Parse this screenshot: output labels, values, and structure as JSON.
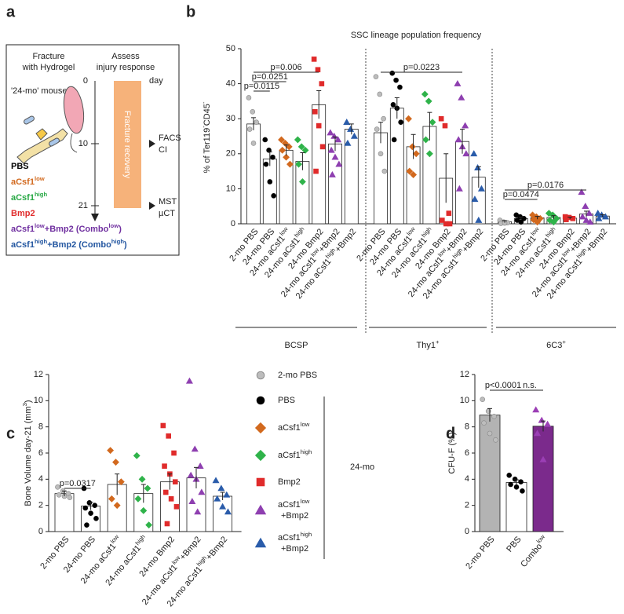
{
  "panel_a": {
    "letter": "a",
    "left_heading": [
      "Fracture",
      "with Hydrogel"
    ],
    "right_heading": [
      "Assess",
      "injury response"
    ],
    "mouse_label": "'24-mo' mouse",
    "day_label": "day",
    "days": [
      "0",
      "10",
      "21"
    ],
    "bar_label": "Fracture recovery",
    "assessments": [
      [
        "FACS",
        "CI"
      ],
      [
        "MST",
        "µCT"
      ]
    ],
    "treatments": [
      [
        "PBS"
      ],
      [
        "aCsf1",
        "low"
      ],
      [
        "aCsf1",
        "high"
      ],
      [
        "Bmp2"
      ],
      [
        "aCsf1",
        "low",
        "+Bmp2 (Combo",
        "low",
        ")"
      ],
      [
        "aCsf1",
        "high",
        "+Bmp2 (Combo",
        "high",
        ")"
      ]
    ],
    "treatment_colors": [
      "#000000",
      "#d2691e",
      "#27a844",
      "#e02b2b",
      "#7030a0",
      "#2356a0"
    ]
  },
  "chart_data": [
    {
      "type": "bar",
      "letter": "b",
      "title": "SSC lineage population frequency",
      "ylabel": [
        "% of Ter119",
        "-",
        "CD45",
        "-"
      ],
      "ylim": [
        0,
        50
      ],
      "yticks": [
        0,
        10,
        20,
        30,
        40,
        50
      ],
      "categories": [
        [
          "2-mo PBS"
        ],
        [
          "24-mo PBS"
        ],
        [
          "24-mo  aCsf1",
          "low"
        ],
        [
          "24-mo aCsf1",
          "high"
        ],
        [
          "24-mo Bmp2"
        ],
        [
          "24-mo aCsf1",
          "low",
          "+Bmp2"
        ],
        [
          "24-mo aCsf1",
          "high",
          "+Bmp2"
        ]
      ],
      "markers": [
        {
          "shape": "circle",
          "color": "#bdbdbd"
        },
        {
          "shape": "circle",
          "color": "#000000"
        },
        {
          "shape": "diamond",
          "color": "#d2691e"
        },
        {
          "shape": "diamond",
          "color": "#2fb34a"
        },
        {
          "shape": "square",
          "color": "#e02b2b"
        },
        {
          "shape": "triangle",
          "color": "#8e3fb0"
        },
        {
          "shape": "triangle",
          "color": "#2a5caa"
        }
      ],
      "bar_color": "#ffffff",
      "groups": [
        {
          "name": [
            "BCSP"
          ],
          "values": [
            28.5,
            18.5,
            21,
            17.8,
            34,
            22.8,
            27
          ],
          "errors": [
            1.8,
            2,
            1.5,
            2.5,
            4,
            2,
            1.5
          ],
          "points": [
            [
              36,
              32,
              29,
              27,
              23
            ],
            [
              24,
              21,
              19,
              17,
              12,
              8
            ],
            [
              24,
              23,
              22,
              21,
              19,
              17
            ],
            [
              24,
              22,
              21,
              17,
              12
            ],
            [
              47,
              44,
              40,
              32,
              28,
              22,
              15
            ],
            [
              26,
              25,
              24,
              21,
              19,
              17,
              14
            ],
            [
              29,
              27,
              25,
              23
            ]
          ]
        },
        {
          "name": [
            "Thy1",
            "+"
          ],
          "values": [
            26,
            33,
            22,
            27.8,
            13,
            23.5,
            13.3
          ],
          "errors": [
            3,
            3,
            3.5,
            4,
            7,
            3.5,
            3
          ],
          "points": [
            [
              42,
              37,
              30,
              27,
              20,
              15
            ],
            [
              43,
              41,
              39,
              34,
              33,
              29,
              24
            ],
            [
              30,
              22,
              20,
              15,
              14
            ],
            [
              37,
              35,
              29,
              24,
              20
            ],
            [
              30,
              28,
              3,
              1,
              0,
              0
            ],
            [
              40,
              36,
              28,
              24,
              22,
              20,
              10
            ],
            [
              20,
              16,
              10,
              7,
              1
            ]
          ]
        },
        {
          "name": [
            "6C3",
            "+"
          ],
          "values": [
            0.6,
            1.5,
            1.7,
            1.8,
            1.6,
            2.8,
            2.2
          ],
          "errors": [
            0.3,
            0.4,
            0.4,
            0.5,
            0.3,
            0.8,
            0.4
          ],
          "points": [
            [
              1,
              0.5,
              0.3,
              0.1,
              0.2
            ],
            [
              2.5,
              2,
              1.5,
              1,
              0.5
            ],
            [
              2.5,
              2,
              1.5,
              1.2,
              0.5
            ],
            [
              3,
              2.5,
              1.5,
              1,
              0.5
            ],
            [
              2,
              1.8,
              1.5,
              1.2
            ],
            [
              9,
              5,
              3,
              2,
              1,
              0.5
            ],
            [
              3,
              2.5,
              2,
              1.5
            ]
          ]
        }
      ],
      "annotations": [
        {
          "group": 0,
          "from": 0,
          "to": 4,
          "label": "p=0.006"
        },
        {
          "group": 0,
          "from": 0,
          "to": 2,
          "label": "p=0.0251"
        },
        {
          "group": 0,
          "from": 0,
          "to": 1,
          "label": "p=0.0115"
        },
        {
          "group": 1,
          "from": 0,
          "to": 5,
          "label": "p=0.0223"
        },
        {
          "group": 2,
          "from": 0,
          "to": 5,
          "label": "p=0.0176"
        },
        {
          "group": 2,
          "from": 0,
          "to": 2,
          "label": "p=0.0474"
        }
      ]
    },
    {
      "type": "bar",
      "letter": "c",
      "ylabel": [
        "Bone Volume day-21 (mm",
        "3",
        ")"
      ],
      "ylim": [
        0,
        12
      ],
      "yticks": [
        0,
        2,
        4,
        6,
        8,
        10,
        12
      ],
      "categories": [
        [
          "2-mo PBS"
        ],
        [
          "24-mo PBS"
        ],
        [
          "24-mo  aCsf1",
          "low"
        ],
        [
          "24-mo aCsf1",
          "high"
        ],
        [
          "24-mo Bmp2"
        ],
        [
          "24-mo aCsf1",
          "low",
          "+Bmp2"
        ],
        [
          "24-mo aCsf1",
          "high",
          "+Bmp2"
        ]
      ],
      "markers": [
        {
          "shape": "circle",
          "color": "#bdbdbd"
        },
        {
          "shape": "circle",
          "color": "#000000"
        },
        {
          "shape": "diamond",
          "color": "#d2691e"
        },
        {
          "shape": "diamond",
          "color": "#2fb34a"
        },
        {
          "shape": "square",
          "color": "#e02b2b"
        },
        {
          "shape": "triangle",
          "color": "#8e3fb0"
        },
        {
          "shape": "triangle",
          "color": "#2a5caa"
        }
      ],
      "bar_color": "#ffffff",
      "values": [
        2.9,
        1.95,
        3.6,
        2.9,
        3.8,
        4.1,
        2.7
      ],
      "errors": [
        0.2,
        0.3,
        0.8,
        0.7,
        0.6,
        0.8,
        0.3
      ],
      "points": [
        [
          3.4,
          3.1,
          2.9,
          2.8,
          2.7,
          2.6
        ],
        [
          3.3,
          2.2,
          2,
          1.8,
          1.4,
          1,
          0.5
        ],
        [
          6.2,
          5.3,
          3.8,
          2.5,
          2
        ],
        [
          5.8,
          4,
          3.3,
          2.5,
          1.6,
          0.5
        ],
        [
          8.1,
          7.3,
          6,
          5,
          4.4,
          3.8,
          3,
          2.5,
          1.9,
          0.6
        ],
        [
          11.5,
          6.3,
          5,
          4.3,
          4,
          3,
          2.3,
          1.5
        ],
        [
          3.9,
          3.3,
          2.8,
          2.5,
          1.9,
          1.5
        ]
      ],
      "annotations": [
        {
          "from": 0,
          "to": 1,
          "label": "p=0.0317"
        }
      ],
      "legend": {
        "items": [
          [
            [
              "2-mo PBS"
            ]
          ],
          [
            [
              "PBS"
            ]
          ],
          [
            [
              "aCsf1",
              "low"
            ]
          ],
          [
            [
              "aCsf1",
              "high"
            ]
          ],
          [
            [
              "Bmp2"
            ]
          ],
          [
            [
              "aCsf1",
              "low"
            ],
            [
              "+Bmp2"
            ]
          ],
          [
            [
              "aCsf1",
              "high"
            ],
            [
              "+Bmp2"
            ]
          ]
        ],
        "group_label": "24-mo"
      }
    },
    {
      "type": "bar",
      "letter": "d",
      "ylabel": [
        "CFU-F (%)"
      ],
      "ylim": [
        0,
        12
      ],
      "yticks": [
        0,
        2,
        4,
        6,
        8,
        10,
        12
      ],
      "categories": [
        [
          "2-mo PBS"
        ],
        [
          "PBS"
        ],
        [
          "Combo",
          "low"
        ]
      ],
      "markers": [
        {
          "shape": "circle",
          "color": "#bdbdbd"
        },
        {
          "shape": "circle",
          "color": "#000000"
        },
        {
          "shape": "triangle",
          "color": "#9b3fb5"
        }
      ],
      "bar_colors": [
        "#b3b3b3",
        "#ffffff",
        "#7b2a8c"
      ],
      "values": [
        8.9,
        3.75,
        8.05
      ],
      "errors": [
        0.5,
        0.2,
        0.4
      ],
      "points": [
        [
          10.1,
          9.2,
          8.8,
          8.3,
          7.5,
          7
        ],
        [
          4.3,
          4,
          3.8,
          3.6,
          3.4,
          3.1
        ],
        [
          9.3,
          8.5,
          8.2,
          7.5,
          5.5
        ]
      ],
      "annotations": [
        {
          "from": 0,
          "to": 1,
          "label": "p<0.0001"
        },
        {
          "from": 1,
          "to": 2,
          "label": "n.s."
        }
      ]
    }
  ]
}
